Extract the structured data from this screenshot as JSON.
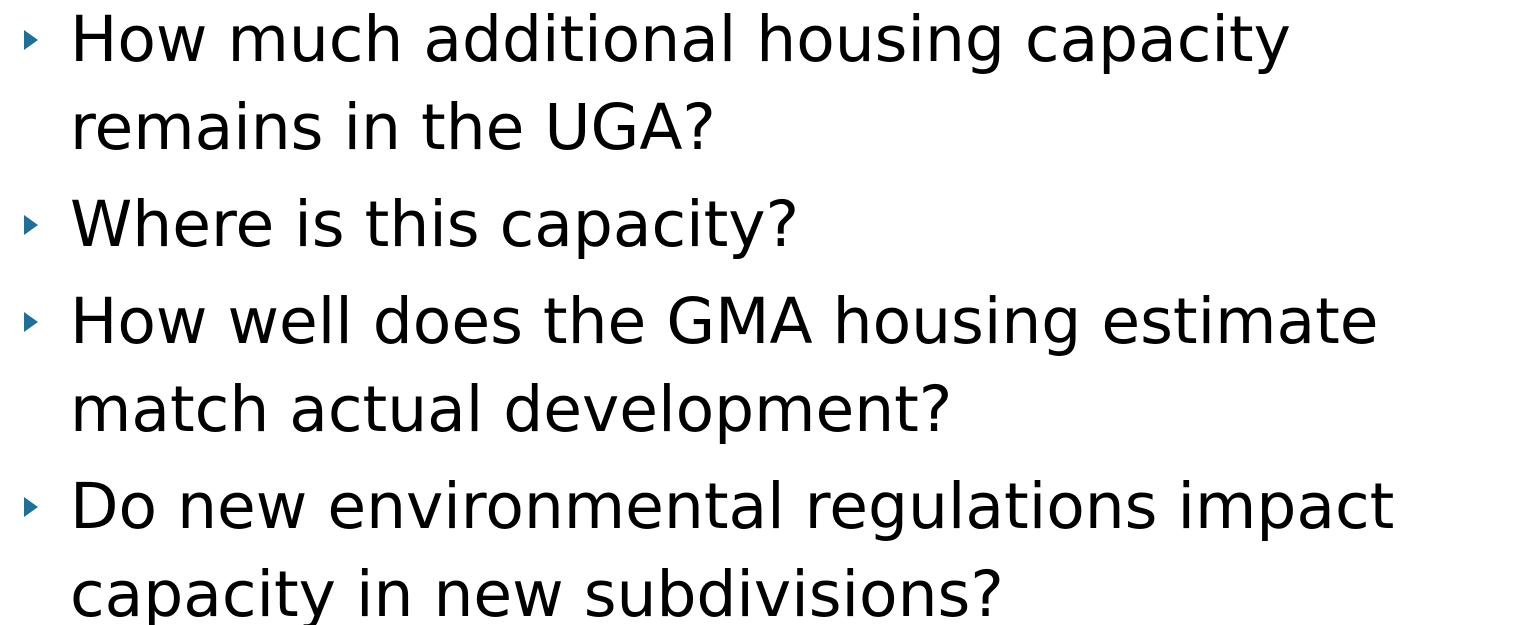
{
  "bullets": [
    [
      "How much additional housing capacity",
      "remains in the UGA?"
    ],
    [
      "Where is this capacity?"
    ],
    [
      "How well does the GMA housing estimate",
      "match actual development?"
    ],
    [
      "Do new environmental regulations impact",
      "capacity in new subdivisions?"
    ]
  ]
}
